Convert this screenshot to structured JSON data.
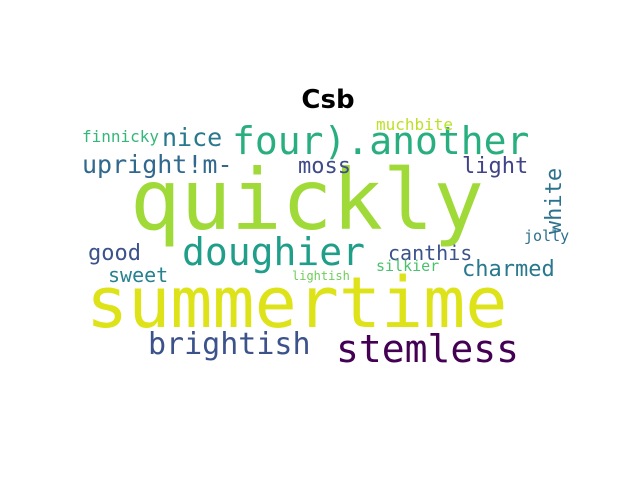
{
  "title": "Csb",
  "words": [
    {
      "text": "quickly",
      "color": "#a0da39"
    },
    {
      "text": "summertime",
      "color": "#dde318"
    },
    {
      "text": "four).another",
      "color": "#29af7f"
    },
    {
      "text": "doughier",
      "color": "#1f9e89"
    },
    {
      "text": "stemless",
      "color": "#440154"
    },
    {
      "text": "brightish",
      "color": "#3b528b"
    },
    {
      "text": "upright!m-",
      "color": "#31688e"
    },
    {
      "text": "nice",
      "color": "#2a788e"
    },
    {
      "text": "moss",
      "color": "#3e4a89"
    },
    {
      "text": "light",
      "color": "#404387"
    },
    {
      "text": "white",
      "color": "#2c728e"
    },
    {
      "text": "charmed",
      "color": "#2a788e"
    },
    {
      "text": "good",
      "color": "#3b528b"
    },
    {
      "text": "sweet",
      "color": "#26828e"
    },
    {
      "text": "canthis",
      "color": "#3b528b"
    },
    {
      "text": "finnicky",
      "color": "#35b779"
    },
    {
      "text": "muchbite",
      "color": "#bddf26"
    },
    {
      "text": "jolly",
      "color": "#2c728e"
    },
    {
      "text": "silkier",
      "color": "#4ac16d"
    },
    {
      "text": "lightish",
      "color": "#6ece58"
    }
  ]
}
